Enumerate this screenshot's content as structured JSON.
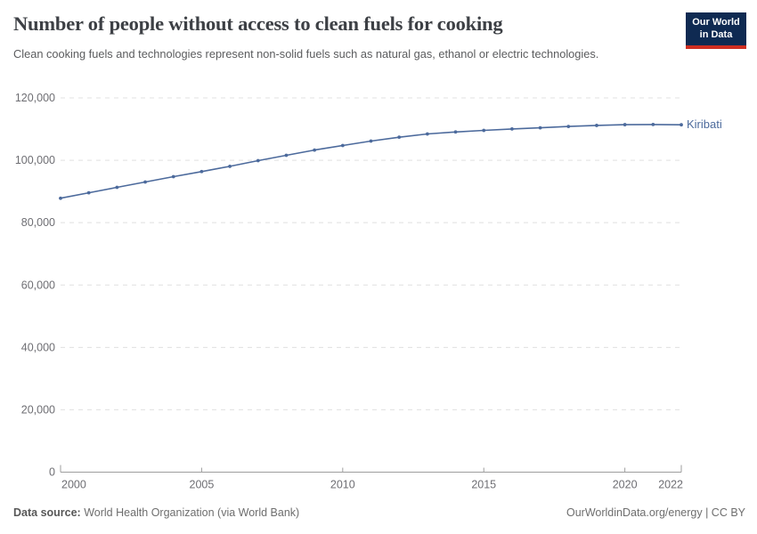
{
  "header": {
    "title": "Number of people without access to clean fuels for cooking",
    "subtitle": "Clean cooking fuels and technologies represent non-solid fuels such as natural gas, ethanol or electric technologies.",
    "logo": {
      "line1": "Our World",
      "line2": "in Data",
      "bg_color": "#0f2a52",
      "accent_color": "#cf2e21",
      "text_color": "#ffffff"
    }
  },
  "chart_data": {
    "type": "line",
    "title": "Number of people without access to clean fuels for cooking",
    "x": [
      2000,
      2001,
      2002,
      2003,
      2004,
      2005,
      2006,
      2007,
      2008,
      2009,
      2010,
      2011,
      2012,
      2013,
      2014,
      2015,
      2016,
      2017,
      2018,
      2019,
      2020,
      2021,
      2022
    ],
    "series": [
      {
        "name": "Kiribati",
        "color": "#4C6A9C",
        "values": [
          87826,
          89577,
          91316,
          93041,
          94749,
          96380,
          98050,
          99890,
          101600,
          103280,
          104740,
          106150,
          107400,
          108430,
          109080,
          109570,
          110040,
          110400,
          110840,
          111170,
          111420,
          111480,
          111380
        ]
      }
    ],
    "ylim": [
      0,
      120000
    ],
    "yticks": [
      0,
      20000,
      40000,
      60000,
      80000,
      100000,
      120000
    ],
    "ytick_labels": [
      "0",
      "20,000",
      "40,000",
      "60,000",
      "80,000",
      "100,000",
      "120,000"
    ],
    "xticks": [
      2000,
      2005,
      2010,
      2015,
      2020,
      2022
    ],
    "xtick_labels": [
      "2000",
      "2005",
      "2010",
      "2015",
      "2020",
      "2022"
    ],
    "grid": "horizontal-dashed",
    "legend": "line-end-label",
    "colors": {
      "line": "#4C6A9C",
      "marker": "#4C6A9C",
      "axis": "#9e9e9e",
      "gridline": "#e0e0e0",
      "tick_label": "#6e6e73",
      "entity_label": "#4C6A9C"
    }
  },
  "footer": {
    "data_source_label": "Data source:",
    "data_source_value": " World Health Organization (via World Bank)",
    "credit": "OurWorldinData.org/energy | CC BY"
  }
}
